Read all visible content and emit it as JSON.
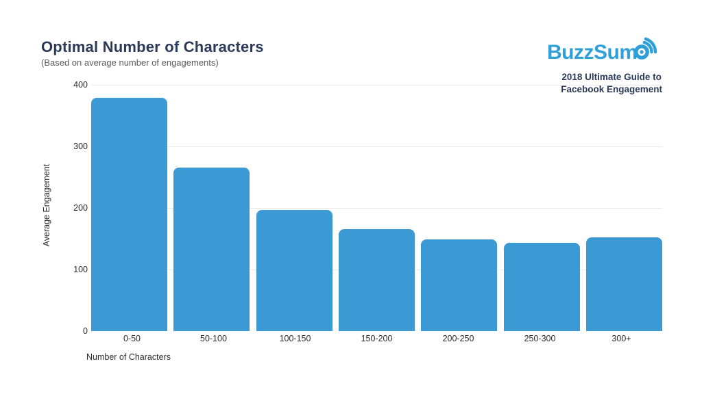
{
  "colors": {
    "background": "#ffffff",
    "bar": "#3b9ad3",
    "gridline": "#e9e9e9",
    "heading": "#2b3a59",
    "subtitle": "#5c5c5c",
    "tick_text": "#2a2a2a",
    "logo_blue": "#2e9fd8"
  },
  "header": {
    "title": "Optimal Number of Characters",
    "subtitle": "(Based on average number of engagements)"
  },
  "brand": {
    "logo_text": "BuzzSum",
    "tagline_line1": "2018 Ultimate Guide to",
    "tagline_line2": "Facebook Engagement"
  },
  "chart_data": {
    "type": "bar",
    "title": "Optimal Number of Characters",
    "subtitle": "(Based on average number of engagements)",
    "categories": [
      "0-50",
      "50-100",
      "100-150",
      "150-200",
      "200-250",
      "250-300",
      "300+"
    ],
    "values": [
      379,
      266,
      197,
      166,
      149,
      143,
      152
    ],
    "xlabel": "Number of Characters",
    "ylabel": "Average Engagement",
    "ylim": [
      0,
      400
    ],
    "yticks": [
      0,
      100,
      200,
      300,
      400
    ],
    "grid": true,
    "legend_position": "none",
    "bar_color": "#3b9ad3"
  }
}
